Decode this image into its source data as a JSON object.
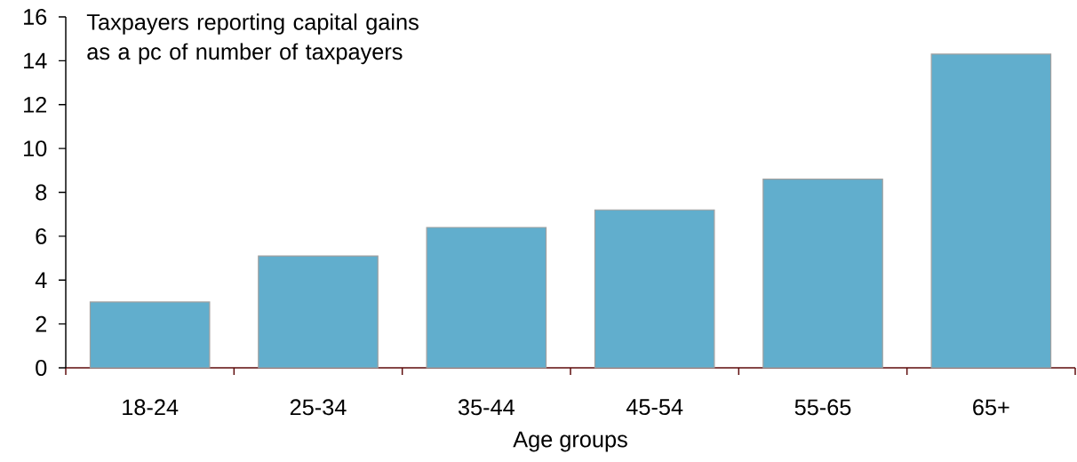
{
  "chart_data": {
    "type": "bar",
    "title": "Taxpayers reporting capital gains as a pc of number of taxpayers",
    "xlabel": "Age groups",
    "categories": [
      "18-24",
      "25-34",
      "35-44",
      "45-54",
      "55-65",
      "65+"
    ],
    "values": [
      3.0,
      5.1,
      6.4,
      7.2,
      8.6,
      14.3
    ],
    "color": "#61aecd",
    "ylim": [
      0,
      16
    ],
    "yticks": [
      0,
      2,
      4,
      6,
      8,
      10,
      12,
      14,
      16
    ]
  }
}
